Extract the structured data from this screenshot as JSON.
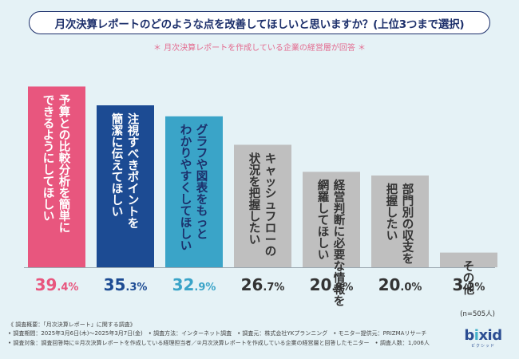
{
  "header": {
    "title": "月次決算レポートのどのような点を改善してほしいと思いますか？(上位3つまで選択)",
    "subtitle": "＊ 月次決算レポートを作成している企業の経営層が回答 ＊"
  },
  "chart_data": {
    "type": "bar",
    "title": "月次決算レポートのどのような点を改善してほしいと思いますか？(上位3つまで選択)",
    "unit": "%",
    "ylim": [
      0,
      40
    ],
    "categories": [
      "予算との比較分析を簡単にできるようにしてほしい",
      "注視すべきポイントを簡潔に伝えてほしい",
      "グラフや図表をもっとわかりやすくしてほしい",
      "キャッシュフローの状況を把握したい",
      "経営判断に必要な情報を網羅してほしい",
      "部門別の収支を把握したい",
      "その他"
    ],
    "label_lines": [
      [
        "予算との比較分析を簡単に",
        "できるようにしてほしい"
      ],
      [
        "注視すべきポイントを",
        "簡潔に伝えてほしい"
      ],
      [
        "グラフや図表をもっと",
        "わかりやすくしてほしい"
      ],
      [
        "キャッシュフローの",
        "状況を把握したい"
      ],
      [
        "経営判断に必要な情報を",
        "網羅してほしい"
      ],
      [
        "部門別の収支を",
        "把握したい"
      ],
      [
        "その他"
      ]
    ],
    "values": [
      39.4,
      35.3,
      32.9,
      26.7,
      20.8,
      20.0,
      3.2
    ],
    "value_int": [
      "39",
      "35",
      "32",
      "26",
      "20",
      "20",
      "3"
    ],
    "value_dec": [
      ".4",
      ".3",
      ".9",
      ".7",
      ".8",
      ".0",
      ".2"
    ],
    "value_unit": "%",
    "colors": [
      "#e8567e",
      "#1c4b93",
      "#3aa4c8",
      "#bfbfbf",
      "#bfbfbf",
      "#bfbfbf",
      "#bfbfbf"
    ],
    "label_colors": [
      "#ffffff",
      "#ffffff",
      "#1c2f6b",
      "#333333",
      "#333333",
      "#333333",
      "#333333"
    ],
    "value_colors": [
      "#e8567e",
      "#1c4b93",
      "#3aa4c8",
      "#333333",
      "#333333",
      "#333333",
      "#333333"
    ]
  },
  "sample": "(n=505人)",
  "notes": [
    "《 調査概要：「月次決算レポート」に関する調査》",
    "• 調査期間：2025年3月6日(木)～2025年3月7日(金)　• 調査方法：インターネット調査　• 調査元：株式会社YKプランニング　• モニター提供元：PRIZMAリサーチ",
    "• 調査対象：調査回答時に①月次決算レポートを作成している経理担当者／②月次決算レポートを作成している企業の経営層と回答したモニター　• 調査人数：1,006人"
  ],
  "logo": {
    "pre": "b",
    "i": "i",
    "post": "xid",
    "sub": "ビクシッド"
  }
}
